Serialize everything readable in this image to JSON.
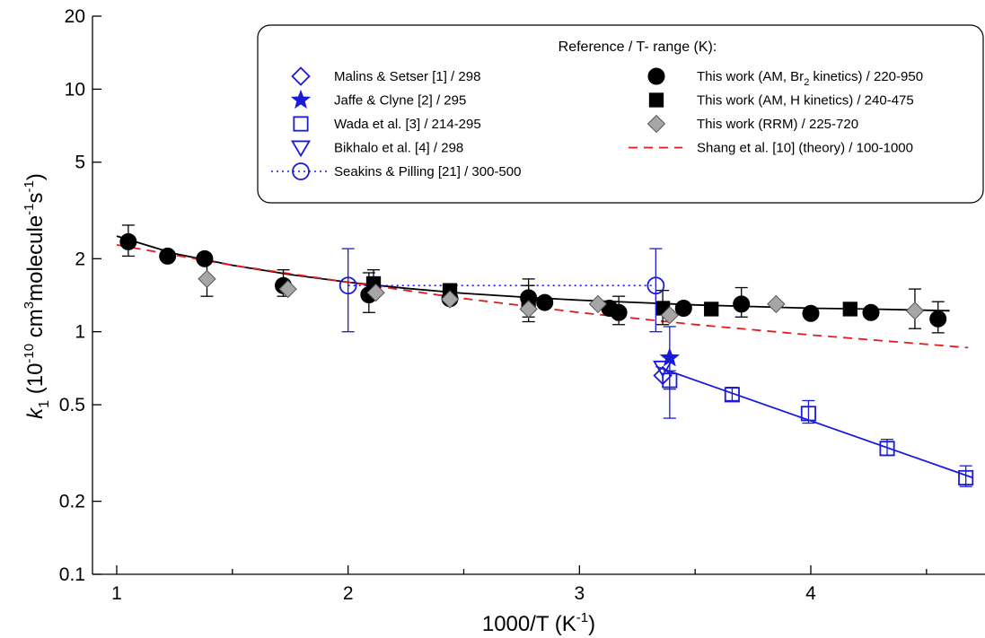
{
  "chart_data": {
    "type": "scatter",
    "title": "",
    "xlabel": {
      "main": "1000/T (K",
      "sup": "-1",
      "close": ")"
    },
    "ylabel": {
      "k": "k",
      "sub": "1",
      "p1": " (10",
      "sup1": "-10",
      "p2": " cm",
      "sup2": "3",
      "p3": "molecule",
      "sup3": "-1",
      "p4": "s",
      "sup4": "-1",
      "p5": ")"
    },
    "x_axis": {
      "range": [
        0.9,
        4.7
      ],
      "ticks": [
        1,
        2,
        3,
        4
      ],
      "tick_labels": [
        "1",
        "2",
        "3",
        "4"
      ],
      "minor_ticks": [
        1.5,
        2.5,
        3.5,
        4.5
      ]
    },
    "y_axis": {
      "scale": "log",
      "range": [
        0.1,
        20
      ],
      "ticks": [
        0.1,
        0.2,
        0.5,
        1,
        2,
        5,
        10,
        20
      ],
      "tick_labels": [
        "0.1",
        "0.2",
        "0.5",
        "1",
        "2",
        "5",
        "10",
        "20"
      ]
    },
    "legend": {
      "title": "Reference / T- range (K):",
      "position": "top-right",
      "left_entries": [
        {
          "key": "malins",
          "label": "Malins & Setser [1] / 298"
        },
        {
          "key": "jaffe",
          "label": "Jaffe & Clyne [2] / 295"
        },
        {
          "key": "wada",
          "label": "Wada et al. [3] / 214-295"
        },
        {
          "key": "bikhalo",
          "label": "Bikhalo et al. [4] / 298"
        },
        {
          "key": "seakins",
          "label": "Seakins & Pilling [21] / 300-500"
        }
      ],
      "right_entries": [
        {
          "key": "am_br2",
          "label_pre": "This work (AM, Br",
          "label_sub": "2",
          "label_post": " kinetics) / 220-950"
        },
        {
          "key": "am_h",
          "label": "This work (AM, H kinetics) / 240-475"
        },
        {
          "key": "rrm",
          "label": "This work (RRM) / 225-720"
        },
        {
          "key": "shang",
          "label": "Shang et al. [10] (theory) / 100-1000"
        }
      ]
    },
    "colors": {
      "blue": "#1a1adb",
      "black": "#000000",
      "gray": "#a6a6a6",
      "red": "#e41a1c"
    },
    "series": [
      {
        "key": "am_br2",
        "marker": "circle-filled",
        "color": "#000000",
        "points": [
          {
            "x": 1.05,
            "y": 2.35,
            "err": [
              2.05,
              2.75
            ]
          },
          {
            "x": 1.22,
            "y": 2.05
          },
          {
            "x": 1.38,
            "y": 2.0
          },
          {
            "x": 1.72,
            "y": 1.55,
            "err": [
              1.4,
              1.8
            ]
          },
          {
            "x": 2.09,
            "y": 1.42,
            "err": [
              1.2,
              1.75
            ]
          },
          {
            "x": 2.44,
            "y": 1.37
          },
          {
            "x": 2.78,
            "y": 1.38,
            "err": [
              1.15,
              1.65
            ]
          },
          {
            "x": 2.85,
            "y": 1.32
          },
          {
            "x": 3.13,
            "y": 1.25
          },
          {
            "x": 3.17,
            "y": 1.2,
            "err": [
              1.07,
              1.4
            ]
          },
          {
            "x": 3.45,
            "y": 1.25
          },
          {
            "x": 3.7,
            "y": 1.3,
            "err": [
              1.15,
              1.52
            ]
          },
          {
            "x": 4.0,
            "y": 1.19
          },
          {
            "x": 4.26,
            "y": 1.2
          },
          {
            "x": 4.55,
            "y": 1.13,
            "err": [
              0.99,
              1.33
            ]
          }
        ]
      },
      {
        "key": "am_h",
        "marker": "square-filled",
        "color": "#000000",
        "points": [
          {
            "x": 2.11,
            "y": 1.58,
            "err": [
              1.4,
              1.8
            ]
          },
          {
            "x": 2.44,
            "y": 1.48
          },
          {
            "x": 2.78,
            "y": 1.3,
            "err": [
              1.1,
              1.55
            ]
          },
          {
            "x": 3.36,
            "y": 1.25,
            "err": [
              1.07,
              1.48
            ]
          },
          {
            "x": 3.57,
            "y": 1.24
          },
          {
            "x": 4.17,
            "y": 1.24
          }
        ]
      },
      {
        "key": "rrm",
        "marker": "diamond-filled",
        "color": "#a6a6a6",
        "points": [
          {
            "x": 1.39,
            "y": 1.65,
            "err": [
              1.4,
              1.95
            ]
          },
          {
            "x": 1.74,
            "y": 1.5
          },
          {
            "x": 2.12,
            "y": 1.45
          },
          {
            "x": 2.44,
            "y": 1.36
          },
          {
            "x": 2.78,
            "y": 1.24
          },
          {
            "x": 3.08,
            "y": 1.3
          },
          {
            "x": 3.39,
            "y": 1.17
          },
          {
            "x": 3.85,
            "y": 1.3
          },
          {
            "x": 4.45,
            "y": 1.22,
            "err": [
              1.03,
              1.5
            ]
          }
        ]
      },
      {
        "key": "malins",
        "marker": "diamond-open",
        "color": "#1a1adb",
        "points": [
          {
            "x": 3.36,
            "y": 0.66
          }
        ]
      },
      {
        "key": "jaffe",
        "marker": "star-filled",
        "color": "#1a1adb",
        "points": [
          {
            "x": 3.39,
            "y": 0.78,
            "err": [
              0.44,
              1.05
            ]
          }
        ]
      },
      {
        "key": "wada",
        "marker": "square-open",
        "color": "#1a1adb",
        "points": [
          {
            "x": 3.39,
            "y": 0.63,
            "err": [
              0.58,
              0.69
            ]
          },
          {
            "x": 3.66,
            "y": 0.55,
            "err": [
              0.52,
              0.59
            ]
          },
          {
            "x": 3.99,
            "y": 0.46,
            "err": [
              0.42,
              0.52
            ]
          },
          {
            "x": 4.33,
            "y": 0.33,
            "err": [
              0.31,
              0.36
            ]
          },
          {
            "x": 4.67,
            "y": 0.25,
            "err": [
              0.23,
              0.28
            ]
          }
        ]
      },
      {
        "key": "bikhalo",
        "marker": "triangle-down-open",
        "color": "#1a1adb",
        "points": [
          {
            "x": 3.36,
            "y": 0.71
          }
        ]
      },
      {
        "key": "seakins",
        "marker": "circle-open",
        "color": "#1a1adb",
        "points": [
          {
            "x": 2.0,
            "y": 1.55,
            "err": [
              1.0,
              2.2
            ]
          },
          {
            "x": 3.33,
            "y": 1.55,
            "err": [
              1.0,
              2.2
            ]
          }
        ]
      }
    ],
    "lines": [
      {
        "key": "am_br2_fit",
        "style": "solid",
        "color": "#000000",
        "points": [
          {
            "x": 1.0,
            "y": 2.48
          },
          {
            "x": 1.25,
            "y": 2.1
          },
          {
            "x": 1.5,
            "y": 1.88
          },
          {
            "x": 1.75,
            "y": 1.72
          },
          {
            "x": 2.0,
            "y": 1.6
          },
          {
            "x": 2.25,
            "y": 1.51
          },
          {
            "x": 2.5,
            "y": 1.44
          },
          {
            "x": 2.75,
            "y": 1.39
          },
          {
            "x": 3.0,
            "y": 1.35
          },
          {
            "x": 3.25,
            "y": 1.32
          },
          {
            "x": 3.5,
            "y": 1.29
          },
          {
            "x": 3.75,
            "y": 1.27
          },
          {
            "x": 4.0,
            "y": 1.25
          },
          {
            "x": 4.25,
            "y": 1.24
          },
          {
            "x": 4.6,
            "y": 1.22
          }
        ]
      },
      {
        "key": "shang",
        "style": "dashed",
        "color": "#e41a1c",
        "points": [
          {
            "x": 1.0,
            "y": 2.28
          },
          {
            "x": 1.5,
            "y": 1.88
          },
          {
            "x": 2.0,
            "y": 1.6
          },
          {
            "x": 2.5,
            "y": 1.37
          },
          {
            "x": 3.0,
            "y": 1.2
          },
          {
            "x": 3.5,
            "y": 1.07
          },
          {
            "x": 4.0,
            "y": 0.97
          },
          {
            "x": 4.68,
            "y": 0.86
          }
        ]
      },
      {
        "key": "seakins",
        "style": "dotted",
        "color": "#1a1adb",
        "points": [
          {
            "x": 2.0,
            "y": 1.55
          },
          {
            "x": 3.33,
            "y": 1.55
          }
        ]
      },
      {
        "key": "wada_fit",
        "style": "solid",
        "color": "#1a1adb",
        "points": [
          {
            "x": 3.33,
            "y": 0.72
          },
          {
            "x": 4.7,
            "y": 0.25
          }
        ]
      }
    ]
  }
}
